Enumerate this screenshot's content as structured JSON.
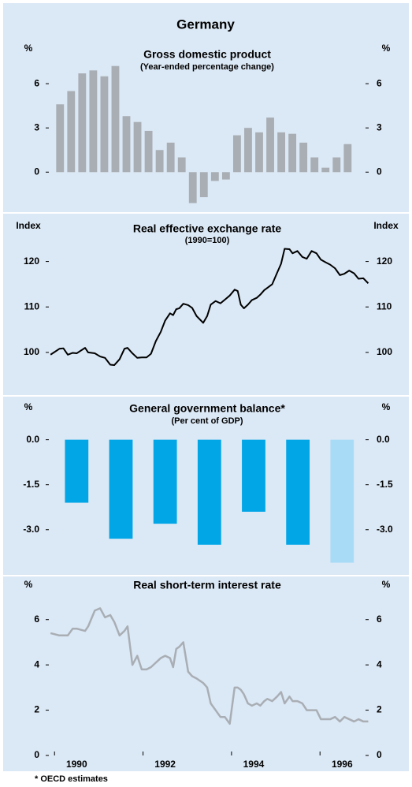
{
  "title": "Germany",
  "footnote": "* OECD estimates",
  "chart_data": [
    {
      "type": "bar",
      "title": "Gross domestic product",
      "subtitle": "(Year-ended percentage change)",
      "y_label": "%",
      "x": [
        1990.125,
        1990.375,
        1990.625,
        1990.875,
        1991.125,
        1991.375,
        1991.625,
        1991.875,
        1992.125,
        1992.375,
        1992.625,
        1992.875,
        1993.125,
        1993.375,
        1993.625,
        1993.875,
        1994.125,
        1994.375,
        1994.625,
        1994.875,
        1995.125,
        1995.375,
        1995.625,
        1995.875,
        1996.125,
        1996.375,
        1996.625
      ],
      "values": [
        4.6,
        5.5,
        6.7,
        6.9,
        6.5,
        7.2,
        3.8,
        3.4,
        2.8,
        1.5,
        2.0,
        1.0,
        -2.1,
        -1.7,
        -0.6,
        -0.5,
        2.5,
        3.0,
        2.7,
        3.7,
        2.7,
        2.6,
        2.0,
        1.0,
        0.3,
        1.0,
        1.9
      ],
      "color": "#a9aeb4",
      "xlim": [
        1989.8,
        1997.1
      ],
      "ylim": [
        -2.5,
        8.2
      ],
      "yticks": [
        0,
        3,
        6
      ]
    },
    {
      "type": "line",
      "title": "Real effective exchange rate",
      "subtitle": "(1990=100)",
      "y_label": "Index",
      "x": [
        1989.91,
        1990.11,
        1990.2,
        1990.3,
        1990.41,
        1990.5,
        1990.69,
        1990.76,
        1990.91,
        1991.03,
        1991.14,
        1991.26,
        1991.35,
        1991.47,
        1991.58,
        1991.65,
        1991.76,
        1991.87,
        1991.97,
        1992.08,
        1992.18,
        1992.29,
        1992.4,
        1992.5,
        1992.61,
        1992.68,
        1992.75,
        1992.82,
        1992.91,
        1993.02,
        1993.11,
        1993.21,
        1993.36,
        1993.45,
        1993.53,
        1993.64,
        1993.75,
        1993.85,
        1993.96,
        1994.07,
        1994.14,
        1994.21,
        1994.28,
        1994.37,
        1994.46,
        1994.57,
        1994.65,
        1994.74,
        1994.81,
        1994.92,
        1995.03,
        1995.12,
        1995.2,
        1995.31,
        1995.38,
        1995.49,
        1995.6,
        1995.7,
        1995.81,
        1995.92,
        1996.02,
        1996.13,
        1996.23,
        1996.34,
        1996.45,
        1996.55,
        1996.66,
        1996.77,
        1996.87,
        1996.98,
        1997.09
      ],
      "values": [
        99.5,
        100.8,
        100.9,
        99.5,
        99.9,
        99.8,
        101.0,
        100.0,
        99.8,
        99.1,
        98.8,
        97.3,
        97.2,
        98.5,
        100.8,
        101.0,
        99.8,
        98.8,
        98.9,
        98.9,
        99.7,
        102.5,
        104.5,
        107.0,
        108.6,
        108.2,
        109.5,
        109.7,
        110.7,
        110.4,
        109.8,
        108.0,
        106.5,
        108.0,
        110.5,
        111.3,
        110.8,
        111.6,
        112.5,
        113.8,
        113.5,
        110.5,
        109.7,
        110.5,
        111.5,
        112.0,
        112.7,
        113.7,
        114.2,
        115.0,
        117.5,
        119.5,
        122.8,
        122.7,
        121.8,
        122.3,
        121.0,
        120.6,
        122.3,
        121.8,
        120.4,
        119.8,
        119.3,
        118.5,
        117.0,
        117.3,
        118.0,
        117.4,
        116.2,
        116.3,
        115.2
      ],
      "color": "#000000",
      "xlim": [
        1989.8,
        1997.1
      ],
      "ylim": [
        92,
        126
      ],
      "yticks": [
        100,
        110,
        120
      ]
    },
    {
      "type": "bar",
      "title": "General government balance*",
      "subtitle": "(Per cent of GDP)",
      "y_label": "%",
      "x": [
        1990.5,
        1991.5,
        1992.5,
        1993.5,
        1994.5,
        1995.5,
        1996.5
      ],
      "values": [
        -2.1,
        -3.3,
        -2.8,
        -3.5,
        -2.4,
        -3.5,
        -4.1
      ],
      "colors": [
        "#00a6e6",
        "#00a6e6",
        "#00a6e6",
        "#00a6e6",
        "#00a6e6",
        "#00a6e6",
        "#a8dcf6"
      ],
      "xlim": [
        1989.8,
        1997.1
      ],
      "ylim": [
        -4.4,
        0.7
      ],
      "yticks": [
        {
          "value": 0,
          "label": "0.0"
        },
        {
          "value": -1.5,
          "label": "-1.5"
        },
        {
          "value": -3,
          "label": "-3.0"
        }
      ]
    },
    {
      "type": "line",
      "title": "Real short-term interest rate",
      "y_label": "%",
      "x": [
        1989.91,
        1990.11,
        1990.2,
        1990.3,
        1990.41,
        1990.5,
        1990.69,
        1990.76,
        1990.91,
        1991.03,
        1991.14,
        1991.26,
        1991.35,
        1991.47,
        1991.58,
        1991.65,
        1991.76,
        1991.87,
        1991.97,
        1992.08,
        1992.18,
        1992.29,
        1992.4,
        1992.5,
        1992.61,
        1992.68,
        1992.75,
        1992.82,
        1992.91,
        1993.02,
        1993.11,
        1993.21,
        1993.36,
        1993.45,
        1993.53,
        1993.64,
        1993.75,
        1993.85,
        1993.96,
        1994.07,
        1994.14,
        1994.21,
        1994.28,
        1994.37,
        1994.46,
        1994.57,
        1994.65,
        1994.74,
        1994.81,
        1994.92,
        1995.03,
        1995.12,
        1995.2,
        1995.31,
        1995.38,
        1995.49,
        1995.6,
        1995.7,
        1995.81,
        1995.92,
        1996.02,
        1996.13,
        1996.23,
        1996.34,
        1996.45,
        1996.55,
        1996.66,
        1996.77,
        1996.87,
        1996.98,
        1997.09
      ],
      "values": [
        5.4,
        5.3,
        5.3,
        5.3,
        5.6,
        5.6,
        5.5,
        5.7,
        6.4,
        6.5,
        6.1,
        6.2,
        5.9,
        5.3,
        5.5,
        5.7,
        4.0,
        4.4,
        3.8,
        3.8,
        3.9,
        4.1,
        4.3,
        4.4,
        4.3,
        3.9,
        4.7,
        4.8,
        5.0,
        3.7,
        3.5,
        3.4,
        3.2,
        3.0,
        2.3,
        2.0,
        1.7,
        1.7,
        1.4,
        3.0,
        3.0,
        2.9,
        2.7,
        2.3,
        2.2,
        2.3,
        2.2,
        2.4,
        2.5,
        2.4,
        2.6,
        2.8,
        2.3,
        2.6,
        2.4,
        2.4,
        2.3,
        2.0,
        2.0,
        2.0,
        1.6,
        1.6,
        1.6,
        1.7,
        1.5,
        1.7,
        1.6,
        1.5,
        1.6,
        1.5,
        1.5
      ],
      "color": "#a9aeb4",
      "xlim": [
        1989.8,
        1997.1
      ],
      "ylim": [
        0,
        7
      ],
      "yticks": [
        0,
        2,
        4,
        6
      ],
      "xticks": [
        1990,
        1992,
        1994,
        1996
      ]
    }
  ]
}
